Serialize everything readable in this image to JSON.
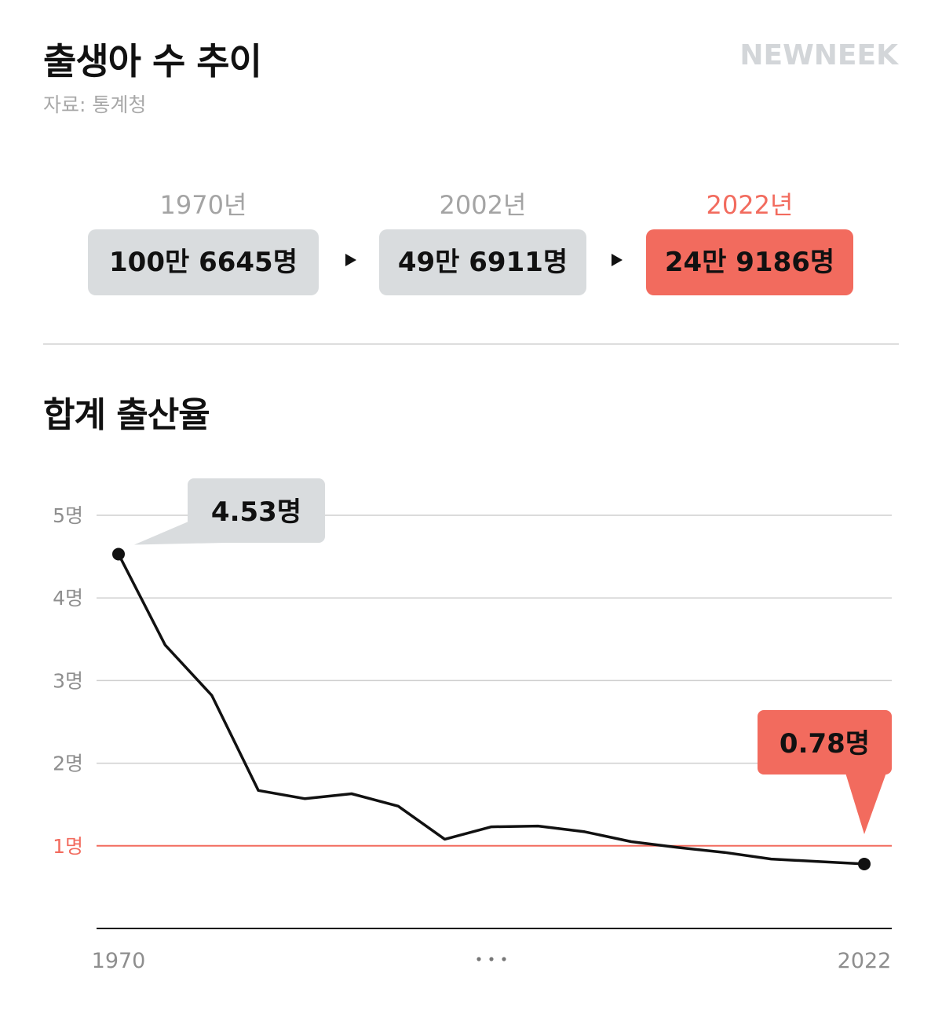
{
  "header": {
    "title": "출생아 수 추이",
    "source": "자료: 통계청",
    "brand": "NEWNEEK"
  },
  "births": [
    {
      "year": "1970년",
      "value": "100만 6645명",
      "highlight": false
    },
    {
      "year": "2002년",
      "value": "49만 6911명",
      "highlight": false
    },
    {
      "year": "2022년",
      "value": "24만 9186명",
      "highlight": true
    }
  ],
  "colors": {
    "accent": "#f26b5e",
    "box_gray": "#d9dcde",
    "text": "#111111",
    "muted": "#8e8e8e",
    "logo": "#d3d6d9"
  },
  "chart_data": {
    "type": "line",
    "title": "합계 출산율",
    "x_tick_labels": [
      "1970",
      "2022"
    ],
    "x_gap_marker": "...",
    "y_ticks": [
      {
        "value": 1,
        "label": "1명",
        "highlight": true
      },
      {
        "value": 2,
        "label": "2명",
        "highlight": false
      },
      {
        "value": 3,
        "label": "3명",
        "highlight": false
      },
      {
        "value": 4,
        "label": "4명",
        "highlight": false
      },
      {
        "value": 5,
        "label": "5명",
        "highlight": false
      }
    ],
    "ylim": [
      0,
      5
    ],
    "grid": true,
    "series": [
      {
        "values": [
          4.53,
          3.43,
          2.82,
          1.67,
          1.57,
          1.63,
          1.48,
          1.08,
          1.23,
          1.24,
          1.17,
          1.05,
          0.98,
          0.92,
          0.84,
          0.81,
          0.78
        ]
      }
    ],
    "annotations": [
      {
        "point_index": 0,
        "label": "4.53명",
        "highlight": false
      },
      {
        "point_index": 16,
        "label": "0.78명",
        "highlight": true
      }
    ]
  }
}
